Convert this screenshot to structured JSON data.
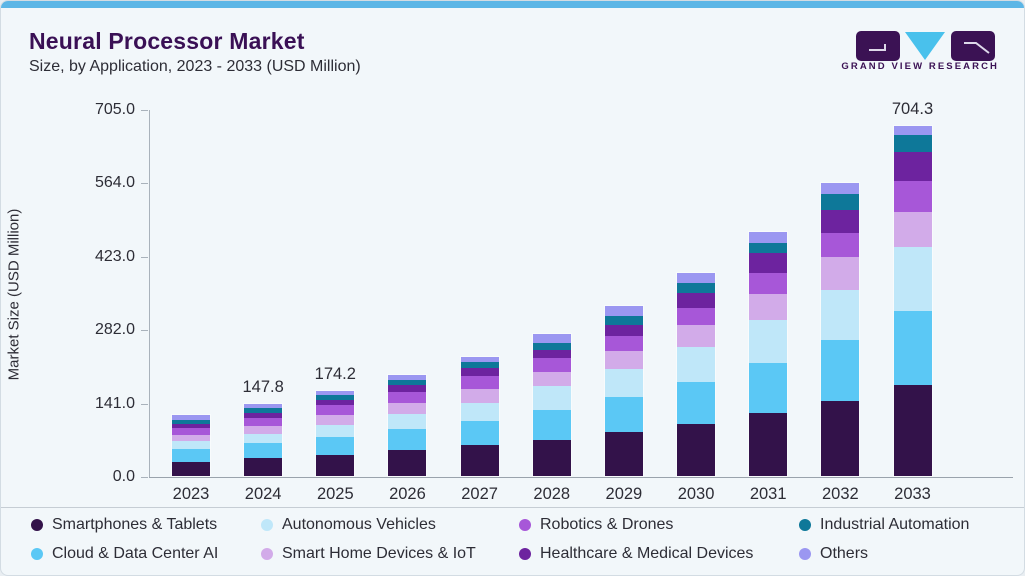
{
  "header": {
    "title": "Neural Processor Market",
    "subtitle": "Size, by Application, 2023 - 2033 (USD Million)",
    "brand": "GRAND VIEW RESEARCH"
  },
  "colors": {
    "accent_bar": "#5cb6e6",
    "card_background": "#f2f7fa",
    "title_text": "#3a1055",
    "body_text": "#2d2d36",
    "axis_line": "#a9b2bb",
    "logo_purple": "#3b1254",
    "logo_cyan": "#49c1ec"
  },
  "chart_data": {
    "type": "bar",
    "stacked": true,
    "title": "Neural Processor Market Size, by Application, 2023 - 2033 (USD Million)",
    "xlabel": "",
    "ylabel": "Market Size (USD Million)",
    "ylim": [
      0,
      705
    ],
    "ytick_labels": [
      "0.0",
      "141.0",
      "282.0",
      "423.0",
      "564.0",
      "705.0"
    ],
    "yticks": [
      0,
      141,
      282,
      423,
      564,
      705
    ],
    "grid": false,
    "legend_position": "bottom",
    "categories": [
      "2023",
      "2024",
      "2025",
      "2026",
      "2027",
      "2028",
      "2029",
      "2030",
      "2031",
      "2032",
      "2033"
    ],
    "totals": [
      125.4,
      147.8,
      174.2,
      205.8,
      243.0,
      288.5,
      343.5,
      411.0,
      492.0,
      589.5,
      704.3
    ],
    "visible_value_labels": [
      {
        "category": "2024",
        "label": "147.8"
      },
      {
        "category": "2025",
        "label": "174.2"
      },
      {
        "category": "2033",
        "label": "704.3"
      }
    ],
    "series": [
      {
        "name": "Smartphones & Tablets",
        "color": "#33124a",
        "values": [
          29.0,
          36.7,
          43.4,
          53.4,
          63.4,
          72.1,
          88.1,
          104.7,
          126.2,
          151.6,
          183.9
        ]
      },
      {
        "name": "Cloud & Data Center AI",
        "color": "#5bc8f5",
        "values": [
          27.0,
          32.0,
          36.7,
          42.0,
          48.7,
          61.4,
          72.1,
          85.4,
          102.1,
          122.0,
          147.4
        ]
      },
      {
        "name": "Autonomous Vehicles",
        "color": "#bfe7f9",
        "values": [
          16.0,
          18.0,
          24.7,
          30.0,
          36.7,
          48.7,
          56.1,
          70.1,
          86.7,
          101.0,
          128.6
        ]
      },
      {
        "name": "Smart Home Devices & IoT",
        "color": "#d2abe9",
        "values": [
          12.0,
          16.0,
          20.0,
          23.4,
          28.0,
          29.4,
          37.4,
          44.7,
          52.0,
          67.0,
          71.7
        ]
      },
      {
        "name": "Robotics & Drones",
        "color": "#a757d8",
        "values": [
          15.0,
          17.4,
          20.7,
          23.4,
          26.7,
          26.7,
          28.6,
          33.4,
          42.0,
          46.7,
          62.3
        ]
      },
      {
        "name": "Healthcare & Medical Devices",
        "color": "#6d239f",
        "values": [
          8.0,
          9.4,
          10.7,
          14.0,
          16.0,
          17.4,
          23.4,
          30.7,
          41.4,
          46.7,
          58.2
        ]
      },
      {
        "name": "Industrial Automation",
        "color": "#0e7899",
        "values": [
          9.4,
          9.4,
          9.4,
          9.4,
          12.0,
          14.7,
          18.7,
          20.0,
          20.2,
          32.4,
          33.3
        ]
      },
      {
        "name": "Others",
        "color": "#9b97f1",
        "values": [
          9.0,
          8.9,
          8.6,
          10.2,
          11.5,
          18.1,
          19.1,
          22.0,
          21.4,
          22.1,
          18.9
        ]
      }
    ]
  },
  "legend": {
    "items": [
      {
        "label": "Smartphones & Tablets",
        "color": "#33124a"
      },
      {
        "label": "Autonomous Vehicles",
        "color": "#bfe7f9"
      },
      {
        "label": "Robotics & Drones",
        "color": "#a757d8"
      },
      {
        "label": "Industrial Automation",
        "color": "#0e7899"
      },
      {
        "label": "Cloud & Data Center AI",
        "color": "#5bc8f5"
      },
      {
        "label": "Smart Home Devices & IoT",
        "color": "#d2abe9"
      },
      {
        "label": "Healthcare & Medical Devices",
        "color": "#6d239f"
      },
      {
        "label": "Others",
        "color": "#9b97f1"
      }
    ]
  }
}
